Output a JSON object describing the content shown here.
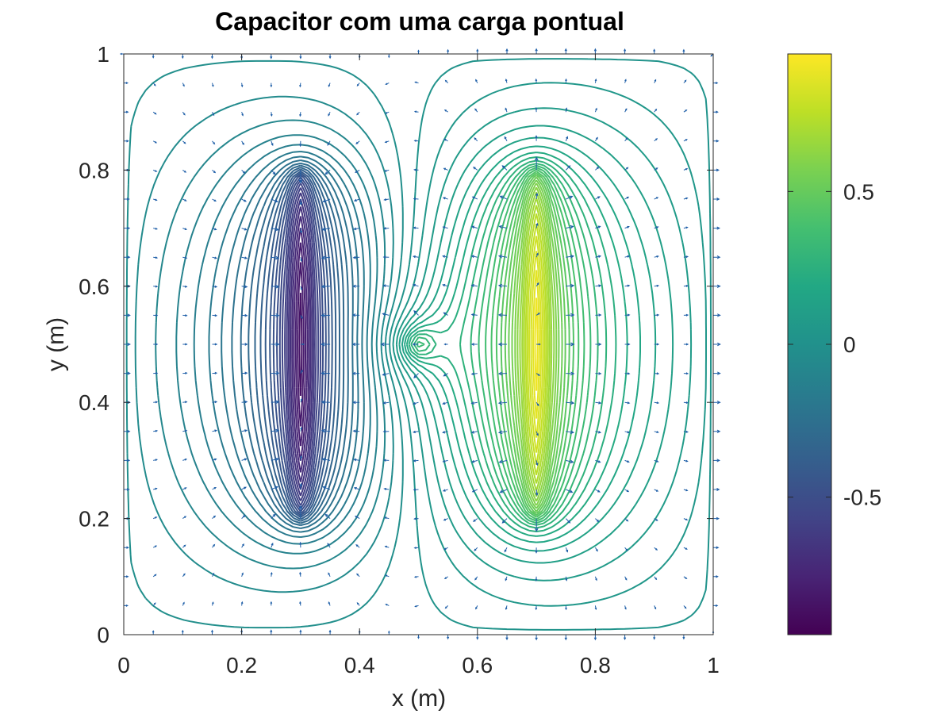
{
  "chart_data": {
    "type": "contour",
    "title": "Capacitor com uma carga pontual",
    "xlabel": "x (m)",
    "ylabel": "y (m)",
    "xlim": [
      0,
      1
    ],
    "ylim": [
      0,
      1
    ],
    "x_ticks": [
      "0",
      "0.2",
      "0.4",
      "0.6",
      "0.8",
      "1"
    ],
    "y_ticks": [
      "0",
      "0.2",
      "0.4",
      "0.6",
      "0.8",
      "1"
    ],
    "colorbar": {
      "range": [
        -0.95,
        0.95
      ],
      "ticks": [
        "-0.5",
        "0",
        "0.5"
      ],
      "colormap": [
        "#440154",
        "#482475",
        "#414487",
        "#355f8d",
        "#2a788e",
        "#21918c",
        "#22a884",
        "#44bf70",
        "#7ad151",
        "#bddf26",
        "#fde725"
      ]
    },
    "plates": [
      {
        "x": 0.3,
        "y_range": [
          0.2,
          0.8
        ],
        "potential": -1
      },
      {
        "x": 0.7,
        "y_range": [
          0.2,
          0.8
        ],
        "potential": 1
      }
    ],
    "point_charge": {
      "x": 0.5,
      "y": 0.5
    },
    "field_arrows": true,
    "arrow_color": "#1f5fa8",
    "grid": false
  }
}
